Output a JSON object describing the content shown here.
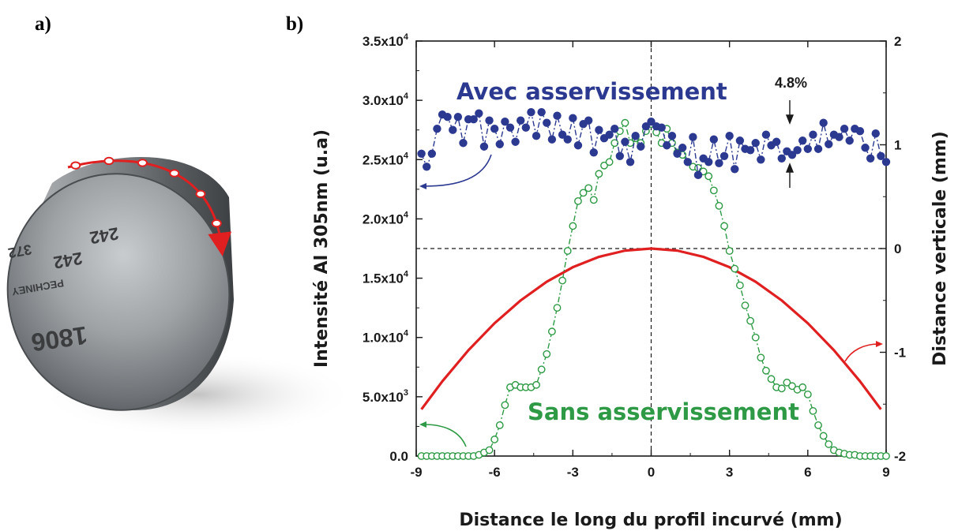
{
  "panels": {
    "a": "a)",
    "b": "b)"
  },
  "photo": {
    "engravings": [
      "242",
      "372",
      "242",
      "PECHINEY",
      "1806"
    ],
    "marker_count": 6
  },
  "colors": {
    "with_servo": "#2b3990",
    "without_servo": "#2e9a45",
    "profile": "#e02020",
    "axes": "#1a1a1a"
  },
  "annotations": {
    "with_servo": "Avec asservissement",
    "without_servo": "Sans asservissement",
    "variation": "4.8%"
  },
  "chart_data": {
    "type": "scatter",
    "xlabel": "Distance le long du profil incurvé (mm)",
    "ylabel": "Intensité Al 305nm (u.a)",
    "y2label": "Distance verticale (mm)",
    "xlim": [
      -9,
      9
    ],
    "ylim": [
      0,
      35000
    ],
    "y2lim": [
      -2,
      2
    ],
    "xticks": [
      -9,
      -6,
      -3,
      0,
      3,
      6,
      9
    ],
    "yticks": [
      {
        "value": 0,
        "base": "0.0",
        "exp": ""
      },
      {
        "value": 5000,
        "base": "5.0x10",
        "exp": "3"
      },
      {
        "value": 10000,
        "base": "1.0x10",
        "exp": "4"
      },
      {
        "value": 15000,
        "base": "1.5x10",
        "exp": "4"
      },
      {
        "value": 20000,
        "base": "2.0x10",
        "exp": "4"
      },
      {
        "value": 25000,
        "base": "2.5x10",
        "exp": "4"
      },
      {
        "value": 30000,
        "base": "3.0x10",
        "exp": "4"
      },
      {
        "value": 35000,
        "base": "3.5x10",
        "exp": "4"
      }
    ],
    "y2ticks": [
      -2,
      -1,
      0,
      1,
      2
    ],
    "reference_lines": {
      "x": 0,
      "y2": 0
    },
    "series": [
      {
        "name": "Avec asservissement",
        "axis": "left",
        "marker": "filled-circle",
        "x": [
          -8.8,
          -8.6,
          -8.4,
          -8.2,
          -8.0,
          -7.8,
          -7.6,
          -7.4,
          -7.2,
          -7.0,
          -6.8,
          -6.6,
          -6.4,
          -6.2,
          -6.0,
          -5.8,
          -5.6,
          -5.4,
          -5.2,
          -5.0,
          -4.8,
          -4.6,
          -4.4,
          -4.2,
          -4.0,
          -3.8,
          -3.6,
          -3.4,
          -3.2,
          -3.0,
          -2.8,
          -2.6,
          -2.4,
          -2.2,
          -2.0,
          -1.8,
          -1.6,
          -1.4,
          -1.2,
          -1.0,
          -0.8,
          -0.6,
          -0.4,
          -0.2,
          0.0,
          0.2,
          0.4,
          0.6,
          0.8,
          1.0,
          1.2,
          1.4,
          1.6,
          1.8,
          2.0,
          2.2,
          2.4,
          2.6,
          2.8,
          3.0,
          3.2,
          3.4,
          3.6,
          3.8,
          4.0,
          4.2,
          4.4,
          4.6,
          4.8,
          5.0,
          5.2,
          5.4,
          5.6,
          5.8,
          6.0,
          6.2,
          6.4,
          6.6,
          6.8,
          7.0,
          7.2,
          7.4,
          7.6,
          7.8,
          8.0,
          8.2,
          8.4,
          8.6,
          8.8,
          9.0
        ],
        "values": [
          25500,
          24400,
          25500,
          27600,
          28800,
          28600,
          27500,
          28600,
          26400,
          28400,
          28400,
          28900,
          26100,
          28300,
          27600,
          26300,
          28200,
          27700,
          26500,
          28300,
          27700,
          29000,
          27000,
          29000,
          28100,
          26700,
          28700,
          27100,
          26700,
          28500,
          26200,
          28000,
          28300,
          25600,
          27500,
          26800,
          27100,
          27600,
          25300,
          26500,
          24800,
          27000,
          26100,
          27800,
          28200,
          27800,
          27700,
          26200,
          27000,
          25500,
          26000,
          24800,
          26900,
          23700,
          25100,
          24800,
          26700,
          24700,
          25300,
          27000,
          24200,
          26600,
          25900,
          25800,
          26400,
          25000,
          27100,
          26200,
          26500,
          25100,
          25700,
          25400,
          25800,
          26600,
          25900,
          27100,
          25900,
          28100,
          26300,
          27100,
          26900,
          27600,
          26600,
          27600,
          27400,
          26000,
          25100,
          27200,
          25300,
          24800
        ]
      },
      {
        "name": "Sans asservissement",
        "axis": "left",
        "marker": "open-circle",
        "x": [
          -8.8,
          -8.6,
          -8.4,
          -8.2,
          -8.0,
          -7.8,
          -7.6,
          -7.4,
          -7.2,
          -7.0,
          -6.8,
          -6.6,
          -6.4,
          -6.2,
          -6.0,
          -5.8,
          -5.6,
          -5.4,
          -5.2,
          -5.0,
          -4.8,
          -4.6,
          -4.4,
          -4.2,
          -4.0,
          -3.8,
          -3.6,
          -3.4,
          -3.2,
          -3.0,
          -2.8,
          -2.6,
          -2.4,
          -2.2,
          -2.0,
          -1.8,
          -1.6,
          -1.4,
          -1.2,
          -1.0,
          -0.8,
          -0.6,
          -0.4,
          -0.2,
          0.0,
          0.2,
          0.4,
          0.6,
          0.8,
          1.0,
          1.2,
          1.4,
          1.6,
          1.8,
          2.0,
          2.2,
          2.4,
          2.6,
          2.8,
          3.0,
          3.2,
          3.4,
          3.6,
          3.8,
          4.0,
          4.2,
          4.4,
          4.6,
          4.8,
          5.0,
          5.2,
          5.4,
          5.6,
          5.8,
          6.0,
          6.2,
          6.4,
          6.6,
          6.8,
          7.0,
          7.2,
          7.4,
          7.6,
          7.8,
          8.0,
          8.2,
          8.4,
          8.6,
          8.8,
          9.0
        ],
        "values": [
          0,
          0,
          0,
          0,
          0,
          0,
          0,
          0,
          0,
          0,
          0,
          100,
          300,
          500,
          1400,
          2600,
          4300,
          5800,
          6000,
          5800,
          5800,
          5800,
          6000,
          7300,
          8600,
          10500,
          12500,
          14800,
          17300,
          19400,
          21500,
          22200,
          22600,
          21600,
          23800,
          24500,
          24800,
          26400,
          27400,
          28100,
          26400,
          26800,
          26400,
          27400,
          28000,
          27300,
          26400,
          27600,
          26400,
          25600,
          25400,
          24800,
          24400,
          24300,
          24000,
          23600,
          22400,
          21100,
          19400,
          17300,
          15800,
          14400,
          12700,
          11400,
          10000,
          8300,
          7200,
          6500,
          5800,
          5700,
          6200,
          5900,
          5600,
          5800,
          5200,
          3800,
          2600,
          1700,
          1000,
          500,
          300,
          200,
          100,
          100,
          0,
          0,
          0,
          0,
          0,
          0
        ]
      },
      {
        "name": "Profil",
        "axis": "right",
        "marker": "line",
        "x": [
          -8.8,
          -8,
          -7,
          -6,
          -5,
          -4,
          -3,
          -2,
          -1,
          0,
          1,
          2,
          3,
          4,
          5,
          6,
          7,
          8,
          8.8
        ],
        "values": [
          -1.55,
          -1.28,
          -0.98,
          -0.72,
          -0.5,
          -0.32,
          -0.18,
          -0.08,
          -0.02,
          0,
          -0.02,
          -0.08,
          -0.18,
          -0.32,
          -0.5,
          -0.72,
          -0.98,
          -1.28,
          -1.55
        ]
      }
    ]
  }
}
